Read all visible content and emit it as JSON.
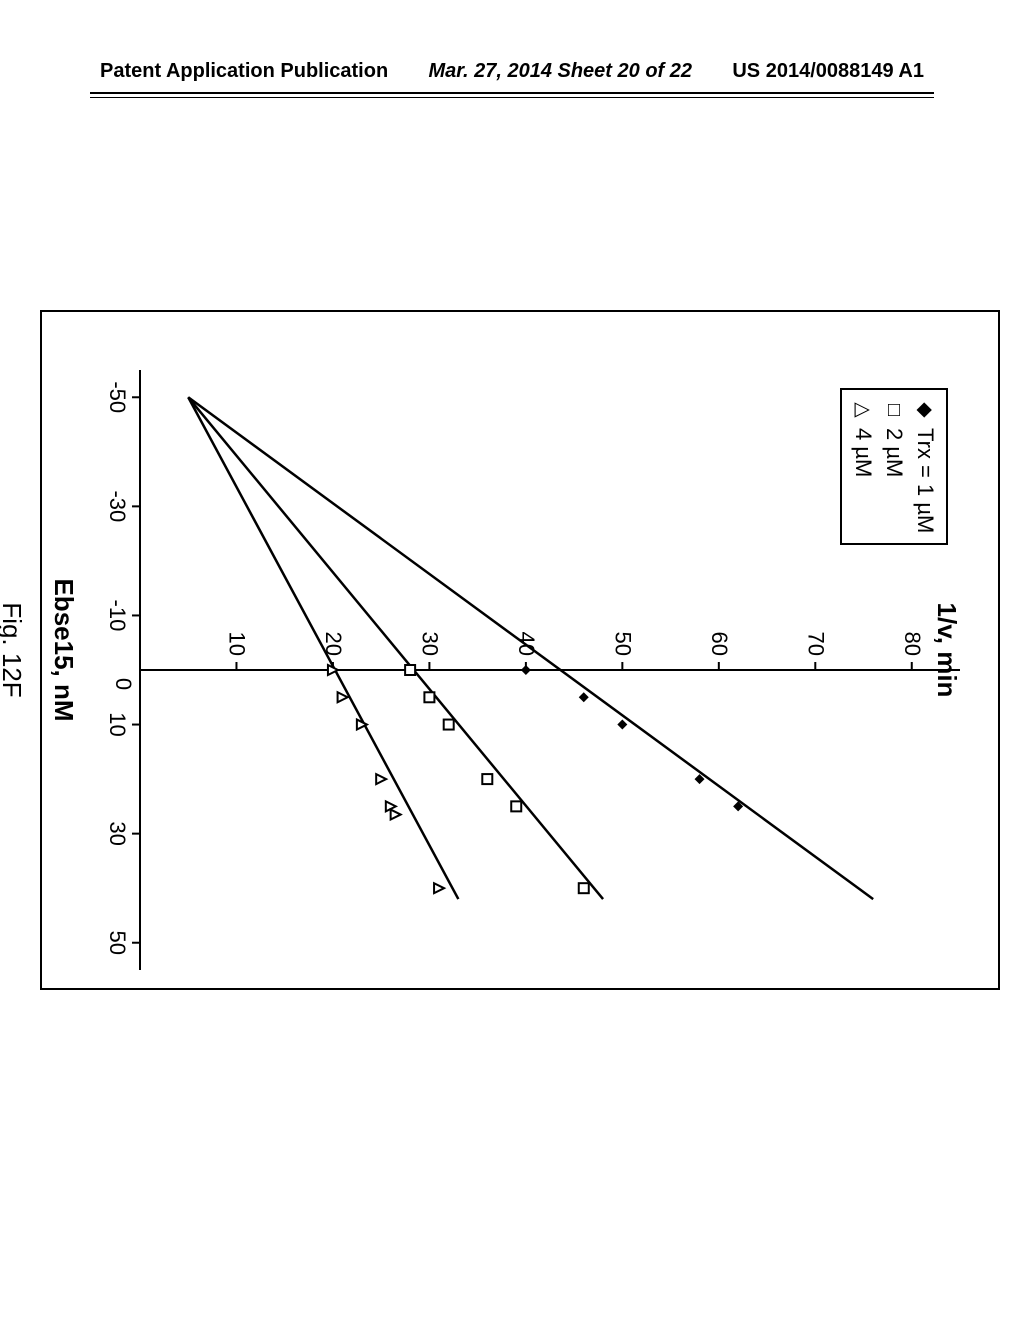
{
  "header": {
    "left": "Patent Application Publication",
    "center": "Mar. 27, 2014  Sheet 20 of 22",
    "right": "US 2014/0088149 A1"
  },
  "chart": {
    "type": "scatter-with-fit-lines",
    "xlabel": "Ebse15, nM",
    "ylabel": "1/v, min",
    "xlim": [
      -55,
      55
    ],
    "ylim": [
      0,
      85
    ],
    "xticks": [
      -50,
      -30,
      -10,
      10,
      30,
      50
    ],
    "yticks": [
      0,
      10,
      20,
      30,
      40,
      50,
      60,
      70,
      80
    ],
    "grid": false,
    "background_color": "#ffffff",
    "line_color": "#000000",
    "line_width": 2.5,
    "series": [
      {
        "label": "Trx = 1 µM",
        "marker": "diamond-filled",
        "marker_color": "#000000",
        "marker_size": 10,
        "points": [
          [
            0,
            40
          ],
          [
            5,
            46
          ],
          [
            10,
            50
          ],
          [
            20,
            58
          ],
          [
            25,
            62
          ]
        ],
        "fit_line": {
          "p1": [
            -50,
            5
          ],
          "p2": [
            42,
            76
          ]
        }
      },
      {
        "label": "2 µM",
        "marker": "square-open",
        "marker_color": "#000000",
        "marker_size": 10,
        "points": [
          [
            0,
            28
          ],
          [
            5,
            30
          ],
          [
            10,
            32
          ],
          [
            20,
            36
          ],
          [
            25,
            39
          ],
          [
            40,
            46
          ]
        ],
        "fit_line": {
          "p1": [
            -50,
            5
          ],
          "p2": [
            42,
            48
          ]
        }
      },
      {
        "label": "4 µM",
        "marker": "triangle-open",
        "marker_color": "#000000",
        "marker_size": 10,
        "points": [
          [
            0,
            20
          ],
          [
            5,
            21
          ],
          [
            10,
            23
          ],
          [
            20,
            25
          ],
          [
            25,
            26
          ],
          [
            26.5,
            26.5
          ],
          [
            40,
            31
          ]
        ],
        "fit_line": {
          "p1": [
            -50,
            5
          ],
          "p2": [
            42,
            33
          ]
        }
      }
    ]
  },
  "figure_caption": "Fig. 12F"
}
